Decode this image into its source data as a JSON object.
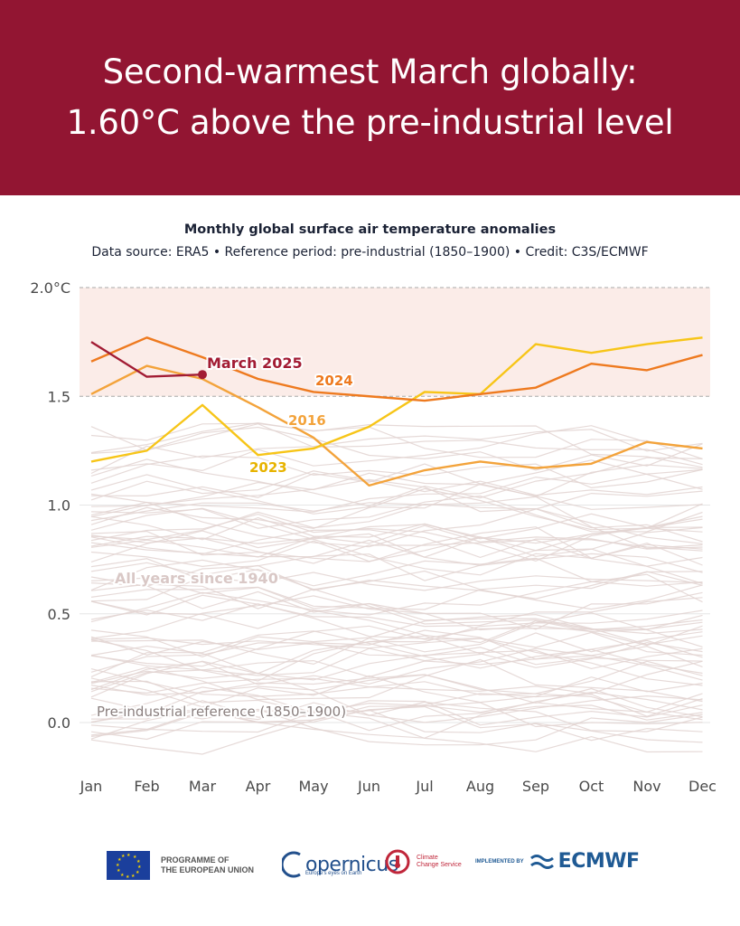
{
  "banner": {
    "line1": "Second-warmest March globally:",
    "line2": "1.60°C above the pre-industrial level"
  },
  "chart_data": {
    "type": "line",
    "title": "Monthly global surface air temperature anomalies",
    "subtitle": "Data source: ERA5 • Reference period: pre-industrial (1850–1900) • Credit: C3S/ECMWF",
    "categories": [
      "Jan",
      "Feb",
      "Mar",
      "Apr",
      "May",
      "Jun",
      "Jul",
      "Aug",
      "Sep",
      "Oct",
      "Nov",
      "Dec"
    ],
    "y_ticks": [
      {
        "value": 2.0,
        "label": "2.0°C"
      },
      {
        "value": 1.5,
        "label": "1.5"
      },
      {
        "value": 1.0,
        "label": "1.0"
      },
      {
        "value": 0.5,
        "label": "0.5"
      },
      {
        "value": 0.0,
        "label": "0.0"
      }
    ],
    "ylim": [
      -0.2,
      2.0
    ],
    "shaded_band": [
      1.5,
      2.0
    ],
    "grid": true,
    "highlight_series": [
      {
        "name": "2016",
        "color": "#f3a33b",
        "values": [
          1.51,
          1.64,
          1.58,
          1.45,
          1.31,
          1.09,
          1.16,
          1.2,
          1.17,
          1.19,
          1.29,
          1.26
        ]
      },
      {
        "name": "2023",
        "color": "#f7c518",
        "values": [
          1.2,
          1.25,
          1.46,
          1.23,
          1.26,
          1.36,
          1.52,
          1.51,
          1.74,
          1.7,
          1.74,
          1.77
        ]
      },
      {
        "name": "2024",
        "color": "#ee7a1f",
        "values": [
          1.66,
          1.77,
          1.68,
          1.58,
          1.52,
          1.5,
          1.48,
          1.51,
          1.54,
          1.65,
          1.62,
          1.69
        ]
      },
      {
        "name": "March 2025",
        "color": "#a21c34",
        "values": [
          1.75,
          1.59,
          1.6
        ]
      }
    ],
    "annotations": {
      "march_2025": "March 2025",
      "y2024": "2024",
      "y2016": "2016",
      "y2023": "2023",
      "all_years": "All years since 1940",
      "reference": "Pre-industrial reference (1850–1900)"
    },
    "background_color": "#e2d3d1"
  },
  "logos": {
    "eu": "PROGRAMME OF\nTHE EUROPEAN UNION",
    "copernicus": "opernicus",
    "copernicus_sub": "Europe's eyes on Earth",
    "c3s": "Climate\nChange Service",
    "implemented": "IMPLEMENTED BY",
    "ecmwf": "ECMWF"
  }
}
